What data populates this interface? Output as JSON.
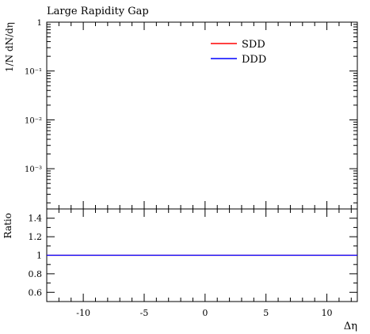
{
  "chart_data": [
    {
      "type": "line",
      "title": "Large Rapidity Gap",
      "ylabel": "1/N dN/dη",
      "yscale": "log",
      "ylim": [
        0.00015,
        1
      ],
      "xlim": [
        -13,
        12.5
      ],
      "y_ticks": [
        {
          "label": "1",
          "value": 1
        },
        {
          "label": "10⁻¹",
          "value": 0.1
        },
        {
          "label": "10⁻²",
          "value": 0.01
        },
        {
          "label": "10⁻³",
          "value": 0.001
        }
      ],
      "legend_position": "top-right",
      "series": [
        {
          "name": "SDD",
          "color": "#ff0000",
          "x": [],
          "y": []
        },
        {
          "name": "DDD",
          "color": "#0000ff",
          "x": [],
          "y": []
        }
      ]
    },
    {
      "type": "line",
      "xlabel": "Δη",
      "ylabel": "Ratio",
      "xlim": [
        -13,
        12.5
      ],
      "ylim": [
        0.5,
        1.5
      ],
      "x_ticks": [
        {
          "label": "-10",
          "value": -10
        },
        {
          "label": "-5",
          "value": -5
        },
        {
          "label": "0",
          "value": 0
        },
        {
          "label": "5",
          "value": 5
        },
        {
          "label": "10",
          "value": 10
        }
      ],
      "y_ticks": [
        {
          "label": "1.4",
          "value": 1.4
        },
        {
          "label": "1.2",
          "value": 1.2
        },
        {
          "label": "1",
          "value": 1.0
        },
        {
          "label": "0.8",
          "value": 0.8
        },
        {
          "label": "0.6",
          "value": 0.6
        }
      ],
      "series": [
        {
          "color": "#ff0000",
          "x": [
            -13,
            12.5
          ],
          "y": [
            1,
            1
          ]
        },
        {
          "color": "#0000ff",
          "x": [
            -13,
            12.5
          ],
          "y": [
            1,
            1
          ]
        }
      ]
    }
  ]
}
